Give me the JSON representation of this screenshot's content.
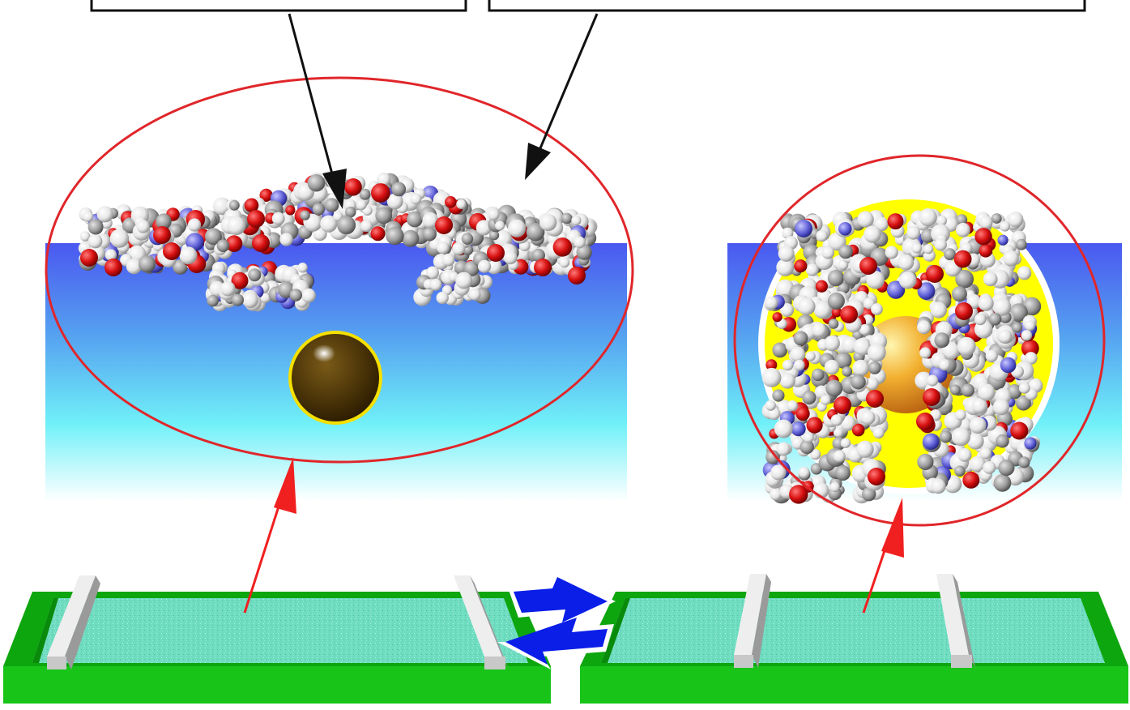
{
  "diagram": {
    "colors": {
      "water_top": "#4b5bf0",
      "water_mid": "#55a8f2",
      "water_bottom": "#ffffff",
      "ring": "#e0262a",
      "arrow_red": "#f02020",
      "arrow_blue": "#0a1ee8",
      "trough_green": "#14b814",
      "trough_dark": "#0a8a0a",
      "subphase": "#6fe3c0",
      "barrier": "#d8d8d8",
      "carbon": "#8a8a8a",
      "hydrogen": "#f2f2f2",
      "oxygen": "#d01010",
      "nitrogen": "#5a5ad8",
      "particle_dark": "#4a3408",
      "particle_gold": "#e6a020",
      "halo_yellow": "#ffff00"
    },
    "panels": [
      {
        "name": "expanded-state",
        "molecule": "extended-film-molecule",
        "guest": "free-nanoparticle"
      },
      {
        "name": "compressed-state",
        "molecule": "folded-film-molecule",
        "guest": "captured-nanoparticle"
      }
    ],
    "icons": {
      "compress": "arrow-right-icon",
      "expand": "arrow-left-icon"
    }
  }
}
